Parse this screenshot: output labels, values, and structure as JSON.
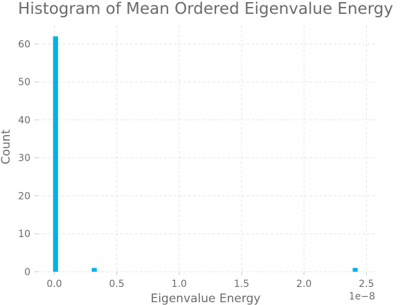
{
  "colors": {
    "bar": "#00b2e6",
    "text": "#6b6b6b",
    "grid": "#e5e5e5"
  },
  "chart_data": {
    "type": "bar",
    "title": "Histogram of Mean Ordered Eigenvalue Energy",
    "xlabel": "Eigenvalue Energy",
    "ylabel": "Count",
    "x_offset_label": "1e−8",
    "x_scale": 1e-08,
    "xlim": [
      -0.13,
      2.57
    ],
    "ylim": [
      0,
      65
    ],
    "grid": true,
    "legend": "none",
    "x_ticks": [
      {
        "value": 0.0,
        "label": "0.0"
      },
      {
        "value": 0.5,
        "label": "0.5"
      },
      {
        "value": 1.0,
        "label": "1.0"
      },
      {
        "value": 1.5,
        "label": "1.5"
      },
      {
        "value": 2.0,
        "label": "2.0"
      },
      {
        "value": 2.5,
        "label": "2.5"
      }
    ],
    "y_ticks": [
      {
        "value": 0,
        "label": "0"
      },
      {
        "value": 10,
        "label": "10"
      },
      {
        "value": 20,
        "label": "20"
      },
      {
        "value": 30,
        "label": "30"
      },
      {
        "value": 40,
        "label": "40"
      },
      {
        "value": 50,
        "label": "50"
      },
      {
        "value": 60,
        "label": "60"
      }
    ],
    "bins": [
      {
        "x0": -0.01,
        "x1": 0.03,
        "count": 62
      },
      {
        "x0": 0.3,
        "x1": 0.34,
        "count": 1
      },
      {
        "x0": 2.39,
        "x1": 2.43,
        "count": 1
      }
    ]
  }
}
